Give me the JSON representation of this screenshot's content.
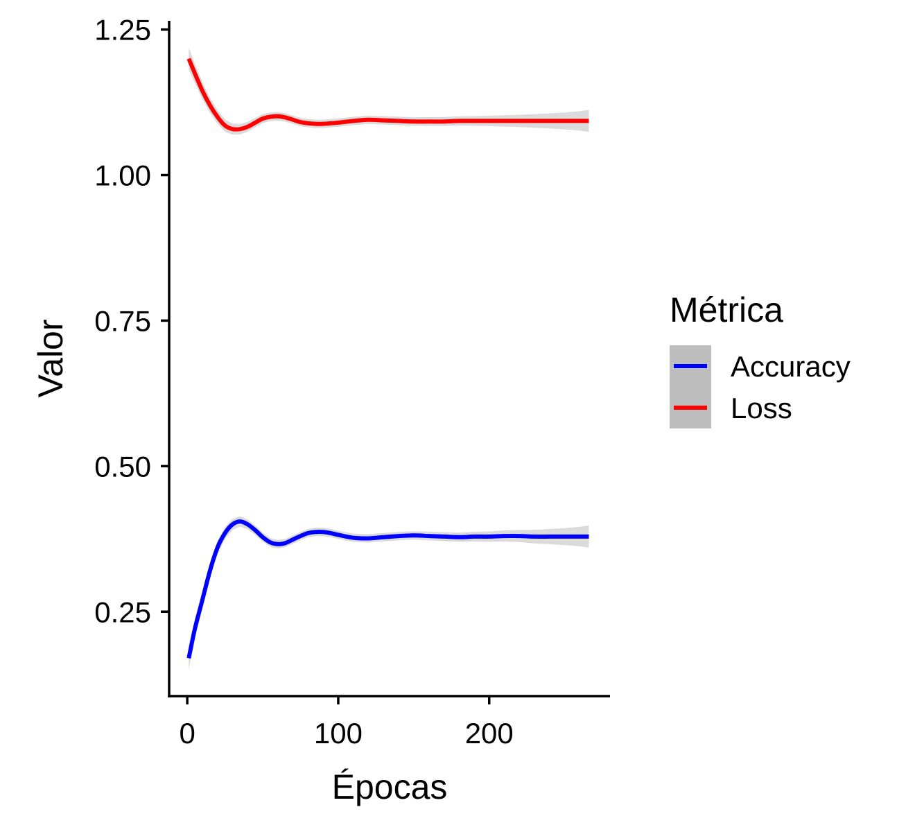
{
  "chart_data": {
    "type": "line",
    "title": "",
    "xlabel": "Épocas",
    "ylabel": "Valor",
    "xlim": [
      -12,
      280
    ],
    "ylim": [
      0.105,
      1.265
    ],
    "xticks": [
      0,
      100,
      200
    ],
    "xtick_labels": [
      "0",
      "100",
      "200"
    ],
    "yticks": [
      0.25,
      0.5,
      0.75,
      1.0,
      1.25
    ],
    "ytick_labels": [
      "0.25",
      "0.50",
      "0.75",
      "1.00",
      "1.25"
    ],
    "grid": false,
    "legend": {
      "title": "Métrica",
      "position": "right"
    },
    "series": [
      {
        "name": "Accuracy",
        "color": "#0000FF",
        "x": [
          1,
          5,
          10,
          15,
          20,
          25,
          30,
          35,
          40,
          45,
          50,
          55,
          60,
          65,
          70,
          75,
          80,
          85,
          90,
          95,
          100,
          110,
          120,
          130,
          140,
          150,
          160,
          170,
          180,
          190,
          200,
          210,
          220,
          230,
          240,
          250,
          260,
          266
        ],
        "y": [
          0.17,
          0.22,
          0.27,
          0.32,
          0.36,
          0.385,
          0.4,
          0.405,
          0.4,
          0.39,
          0.378,
          0.369,
          0.366,
          0.368,
          0.374,
          0.38,
          0.385,
          0.387,
          0.387,
          0.385,
          0.382,
          0.377,
          0.376,
          0.378,
          0.38,
          0.381,
          0.38,
          0.379,
          0.378,
          0.379,
          0.379,
          0.38,
          0.38,
          0.379,
          0.379,
          0.379,
          0.379,
          0.379
        ]
      },
      {
        "name": "Loss",
        "color": "#FF0000",
        "x": [
          1,
          5,
          10,
          15,
          20,
          25,
          30,
          35,
          40,
          45,
          50,
          55,
          60,
          65,
          70,
          75,
          80,
          85,
          90,
          95,
          100,
          110,
          120,
          130,
          140,
          150,
          160,
          170,
          180,
          190,
          200,
          210,
          220,
          230,
          240,
          250,
          260,
          266
        ],
        "y": [
          1.2,
          1.175,
          1.145,
          1.12,
          1.1,
          1.085,
          1.079,
          1.079,
          1.083,
          1.09,
          1.097,
          1.1,
          1.101,
          1.099,
          1.095,
          1.091,
          1.089,
          1.088,
          1.088,
          1.089,
          1.09,
          1.093,
          1.095,
          1.094,
          1.093,
          1.092,
          1.092,
          1.092,
          1.093,
          1.093,
          1.093,
          1.093,
          1.093,
          1.093,
          1.093,
          1.093,
          1.093,
          1.093
        ]
      }
    ]
  }
}
